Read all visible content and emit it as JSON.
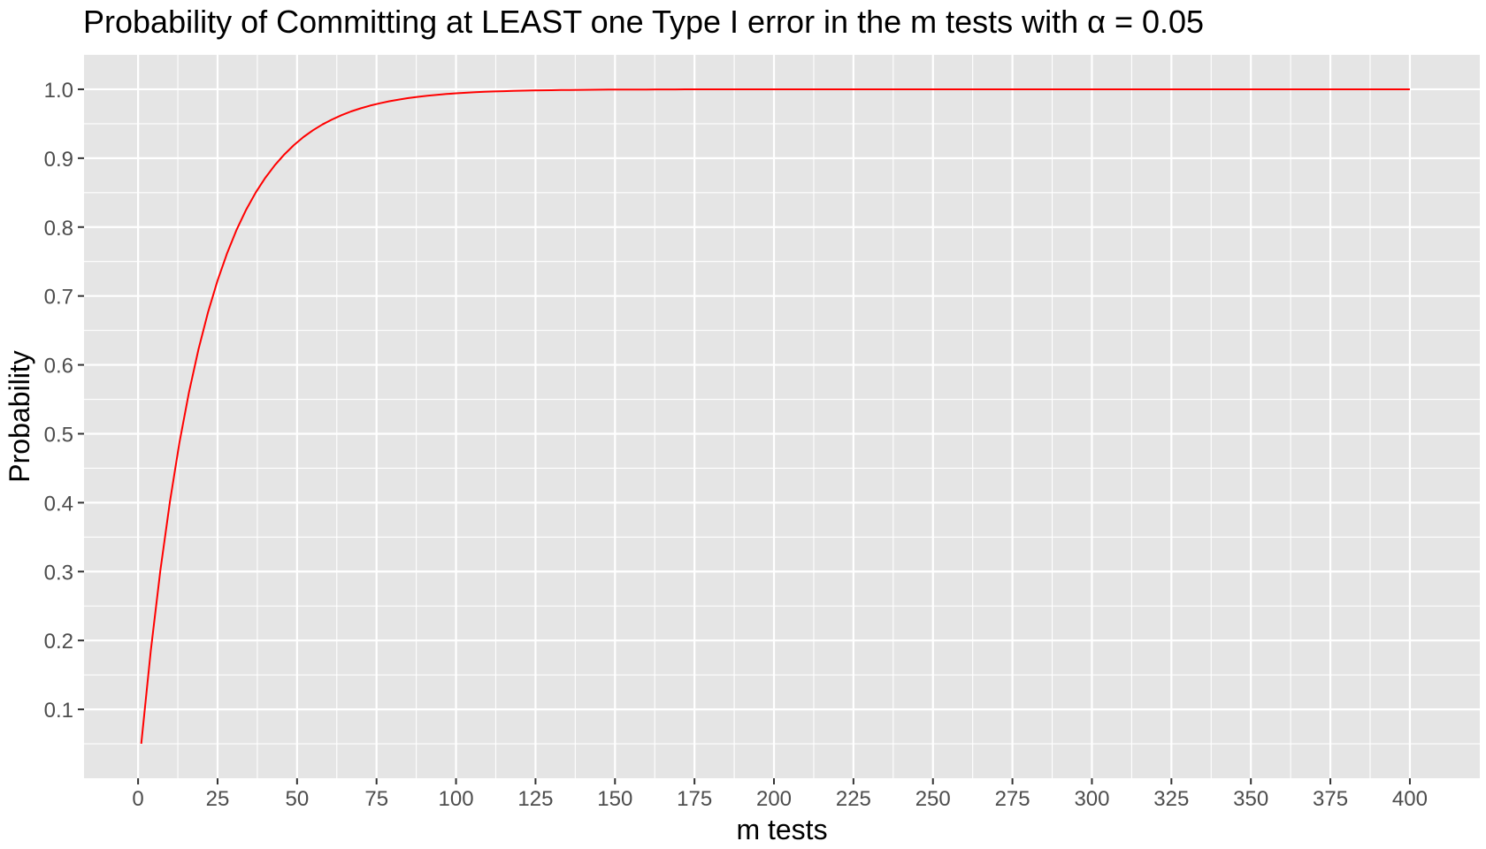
{
  "chart_data": {
    "type": "line",
    "title": "Probability of Committing at LEAST one Type I error in the m tests with α = 0.05",
    "xlabel": "m tests",
    "ylabel": "Probability",
    "xlim": [
      -17,
      422
    ],
    "ylim": [
      0.0,
      1.05
    ],
    "xticks": [
      0,
      25,
      50,
      75,
      100,
      125,
      150,
      175,
      200,
      225,
      250,
      275,
      300,
      325,
      350,
      375,
      400
    ],
    "yticks": [
      0.1,
      0.2,
      0.3,
      0.4,
      0.5,
      0.6,
      0.7,
      0.8,
      0.9,
      1.0
    ],
    "ytick_labels": [
      "0.1",
      "0.2",
      "0.3",
      "0.4",
      "0.5",
      "0.6",
      "0.7",
      "0.8",
      "0.9",
      "1.0"
    ],
    "grid": true,
    "legend": "none",
    "series": [
      {
        "color": "#ff0000",
        "x": [
          1,
          4,
          7,
          10,
          13,
          16,
          19,
          22,
          25,
          28,
          31,
          34,
          37,
          40,
          43,
          46,
          49,
          52,
          55,
          58,
          61,
          64,
          67,
          70,
          73,
          76,
          79,
          82,
          85,
          88,
          91,
          94,
          97,
          100,
          103,
          106,
          109,
          112,
          115,
          118,
          121,
          124,
          127,
          130,
          133,
          136,
          139,
          142,
          145,
          148,
          151,
          154,
          157,
          160,
          163,
          166,
          169,
          172,
          175,
          178,
          181,
          184,
          187,
          190,
          193,
          196,
          199,
          202,
          205,
          208,
          211,
          214,
          217,
          220,
          223,
          226,
          229,
          232,
          235,
          238,
          241,
          244,
          247,
          250,
          253,
          256,
          259,
          262,
          265,
          268,
          271,
          274,
          277,
          280,
          283,
          286,
          289,
          292,
          295,
          298,
          301,
          304,
          307,
          310,
          313,
          316,
          319,
          322,
          325,
          328,
          331,
          334,
          337,
          340,
          343,
          346,
          349,
          352,
          355,
          358,
          361,
          364,
          367,
          370,
          373,
          376,
          379,
          382,
          385,
          388,
          391,
          394,
          397,
          400
        ],
        "values": [
          0.05,
          0.1855,
          0.3017,
          0.4013,
          0.4867,
          0.5599,
          0.6226,
          0.6765,
          0.7226,
          0.7622,
          0.7961,
          0.8252,
          0.8501,
          0.8715,
          0.8898,
          0.9055,
          0.919,
          0.9306,
          0.9405,
          0.949,
          0.9562,
          0.9625,
          0.9678,
          0.9724,
          0.9763,
          0.9797,
          0.9826,
          0.9851,
          0.9872,
          0.989,
          0.9906,
          0.9919,
          0.9931,
          0.9941,
          0.9949,
          0.9957,
          0.9963,
          0.9968,
          0.9973,
          0.9977,
          0.998,
          0.9983,
          0.9985,
          0.9987,
          0.9989,
          0.9991,
          0.9992,
          0.9993,
          0.9994,
          0.9995,
          0.9996,
          0.9996,
          0.9997,
          0.9997,
          0.9998,
          0.9998,
          0.9998,
          0.9999,
          0.9999,
          0.9999,
          0.9999,
          0.9999,
          0.9999,
          0.9999,
          1.0,
          1.0,
          1.0,
          1.0,
          1.0,
          1.0,
          1.0,
          1.0,
          1.0,
          1.0,
          1.0,
          1.0,
          1.0,
          1.0,
          1.0,
          1.0,
          1.0,
          1.0,
          1.0,
          1.0,
          1.0,
          1.0,
          1.0,
          1.0,
          1.0,
          1.0,
          1.0,
          1.0,
          1.0,
          1.0,
          1.0,
          1.0,
          1.0,
          1.0,
          1.0,
          1.0,
          1.0,
          1.0,
          1.0,
          1.0,
          1.0,
          1.0,
          1.0,
          1.0,
          1.0,
          1.0,
          1.0,
          1.0,
          1.0,
          1.0,
          1.0,
          1.0,
          1.0,
          1.0,
          1.0,
          1.0,
          1.0,
          1.0,
          1.0,
          1.0,
          1.0,
          1.0,
          1.0,
          1.0,
          1.0,
          1.0,
          1.0,
          1.0,
          1.0,
          1.0
        ]
      }
    ],
    "colors": {
      "panel_background": "#e5e5e5",
      "grid": "#ffffff",
      "line": "#ff0000",
      "tick_text": "#4d4d4d"
    }
  }
}
